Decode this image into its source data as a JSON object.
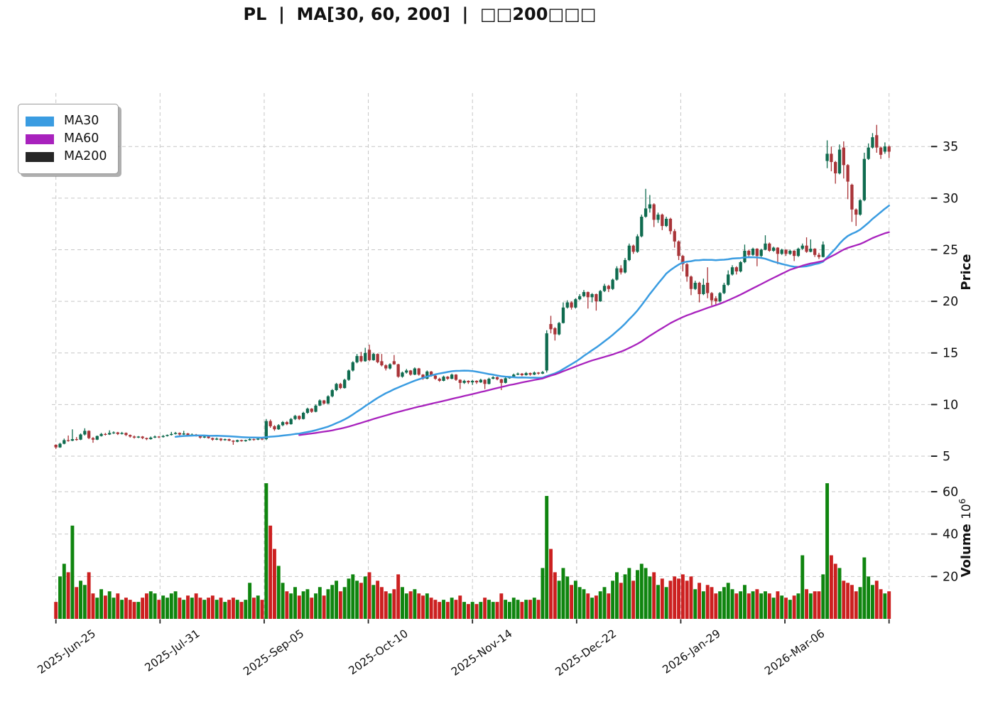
{
  "title": "PL  |  MA[30, 60, 200]  |  □□200□□□",
  "chart_data": {
    "type": "candlestick",
    "ticker": "PL",
    "panels": [
      "price",
      "volume"
    ],
    "x_axis": {
      "tick_labels": [
        "2025-Jun-25",
        "2025-Jul-31",
        "2025-Sep-05",
        "2025-Oct-10",
        "2025-Nov-14",
        "2025-Dec-22",
        "2026-Jan-29",
        "2026-Mar-06",
        ""
      ]
    },
    "price_axis": {
      "label": "Price",
      "ticks": [
        5,
        10,
        15,
        20,
        25,
        30,
        35
      ],
      "range": [
        3.8,
        40.2
      ]
    },
    "volume_axis": {
      "label": "Volume",
      "unit_base": "10",
      "unit_exp": "6",
      "ticks": [
        20,
        40,
        60
      ],
      "range": [
        0,
        70.8
      ]
    },
    "legend": {
      "items": [
        {
          "label": "MA30",
          "color": "#3a9ce1",
          "period": 30,
          "plotted": true
        },
        {
          "label": "MA60",
          "color": "#a822bd",
          "period": 60,
          "plotted": true
        },
        {
          "label": "MA200",
          "color": "#262626",
          "period": 200,
          "plotted": false
        }
      ]
    },
    "colors": {
      "up": "#0f6b4f",
      "down": "#a93438",
      "volume_up": "#0f850f",
      "volume_down": "#cc2020",
      "grid": "#c6c6c6",
      "axis_text": "#111111",
      "tick_mark": "#222222"
    },
    "ohlcv_columns": [
      "open",
      "high",
      "low",
      "close",
      "volume_millions"
    ],
    "ohlcv": [
      [
        6.1,
        6.15,
        5.7,
        5.85,
        8
      ],
      [
        5.85,
        6.3,
        5.8,
        6.2,
        20
      ],
      [
        6.2,
        6.7,
        6.15,
        6.55,
        26
      ],
      [
        6.55,
        7.0,
        6.4,
        6.5,
        22
      ],
      [
        6.5,
        7.6,
        6.45,
        6.65,
        44
      ],
      [
        6.65,
        6.85,
        6.5,
        6.6,
        15
      ],
      [
        6.6,
        7.2,
        6.55,
        7.1,
        18
      ],
      [
        7.1,
        7.7,
        7.0,
        7.45,
        16
      ],
      [
        7.45,
        7.5,
        6.65,
        6.75,
        22
      ],
      [
        6.75,
        6.85,
        6.3,
        6.6,
        12
      ],
      [
        6.6,
        7.0,
        6.55,
        6.95,
        10
      ],
      [
        6.95,
        7.25,
        6.9,
        7.15,
        14
      ],
      [
        7.15,
        7.25,
        7.0,
        7.1,
        11
      ],
      [
        7.1,
        7.5,
        7.05,
        7.25,
        13
      ],
      [
        7.25,
        7.4,
        7.15,
        7.3,
        10
      ],
      [
        7.3,
        7.35,
        7.05,
        7.15,
        12
      ],
      [
        7.15,
        7.35,
        7.1,
        7.25,
        9
      ],
      [
        7.25,
        7.3,
        6.95,
        7.05,
        10
      ],
      [
        7.05,
        7.1,
        6.8,
        6.9,
        9
      ],
      [
        6.9,
        7.0,
        6.7,
        6.8,
        8
      ],
      [
        6.8,
        6.95,
        6.75,
        6.9,
        8
      ],
      [
        6.9,
        6.95,
        6.65,
        6.75,
        10
      ],
      [
        6.75,
        6.8,
        6.55,
        6.65,
        12
      ],
      [
        6.65,
        6.9,
        6.6,
        6.8,
        13
      ],
      [
        6.8,
        7.0,
        6.75,
        6.9,
        12
      ],
      [
        6.9,
        6.95,
        6.75,
        6.85,
        9
      ],
      [
        6.85,
        7.05,
        6.8,
        6.95,
        11
      ],
      [
        6.95,
        7.1,
        6.9,
        7.05,
        10
      ],
      [
        7.05,
        7.35,
        7.0,
        7.15,
        12
      ],
      [
        7.15,
        7.35,
        7.1,
        7.25,
        13
      ],
      [
        7.25,
        7.3,
        7.0,
        7.1,
        10
      ],
      [
        7.1,
        7.45,
        7.05,
        7.2,
        9
      ],
      [
        7.2,
        7.25,
        6.95,
        7.0,
        11
      ],
      [
        7.0,
        7.2,
        6.95,
        7.1,
        10
      ],
      [
        7.1,
        7.15,
        6.9,
        6.95,
        12
      ],
      [
        6.95,
        7.0,
        6.7,
        6.8,
        10
      ],
      [
        6.8,
        6.95,
        6.75,
        6.9,
        9
      ],
      [
        6.9,
        6.95,
        6.7,
        6.75,
        10
      ],
      [
        6.75,
        6.8,
        6.5,
        6.6,
        11
      ],
      [
        6.6,
        6.8,
        6.55,
        6.7,
        9
      ],
      [
        6.7,
        6.75,
        6.45,
        6.55,
        10
      ],
      [
        6.55,
        6.7,
        6.5,
        6.65,
        8
      ],
      [
        6.65,
        6.7,
        6.45,
        6.5,
        9
      ],
      [
        6.5,
        6.55,
        6.1,
        6.4,
        10
      ],
      [
        6.4,
        6.6,
        6.35,
        6.55,
        9
      ],
      [
        6.55,
        6.6,
        6.4,
        6.45,
        8
      ],
      [
        6.45,
        6.6,
        6.4,
        6.55,
        9
      ],
      [
        6.55,
        6.75,
        6.5,
        6.65,
        17
      ],
      [
        6.65,
        6.7,
        6.5,
        6.6,
        10
      ],
      [
        6.6,
        6.75,
        6.55,
        6.7,
        11
      ],
      [
        6.7,
        6.75,
        6.55,
        6.65,
        9
      ],
      [
        6.65,
        8.6,
        6.55,
        8.4,
        64
      ],
      [
        8.4,
        8.55,
        7.75,
        7.9,
        44
      ],
      [
        7.9,
        8.0,
        7.45,
        7.6,
        33
      ],
      [
        7.6,
        8.1,
        7.55,
        8.0,
        25
      ],
      [
        8.0,
        8.4,
        7.9,
        8.3,
        17
      ],
      [
        8.3,
        8.4,
        8.0,
        8.1,
        13
      ],
      [
        8.1,
        8.7,
        8.05,
        8.6,
        12
      ],
      [
        8.6,
        9.0,
        8.5,
        8.9,
        15
      ],
      [
        8.9,
        8.95,
        8.5,
        8.6,
        11
      ],
      [
        8.6,
        9.3,
        8.55,
        9.2,
        13
      ],
      [
        9.2,
        9.7,
        9.1,
        9.6,
        14
      ],
      [
        9.6,
        9.65,
        9.2,
        9.3,
        10
      ],
      [
        9.3,
        10.0,
        9.25,
        9.9,
        12
      ],
      [
        9.9,
        10.5,
        9.85,
        10.4,
        15
      ],
      [
        10.4,
        10.45,
        10.0,
        10.1,
        11
      ],
      [
        10.1,
        10.9,
        10.05,
        10.8,
        14
      ],
      [
        10.8,
        11.5,
        10.7,
        11.4,
        16
      ],
      [
        11.4,
        12.1,
        11.3,
        12.0,
        18
      ],
      [
        12.0,
        12.1,
        11.5,
        11.6,
        13
      ],
      [
        11.6,
        12.5,
        11.55,
        12.4,
        15
      ],
      [
        12.4,
        13.4,
        12.3,
        13.3,
        19
      ],
      [
        13.3,
        14.2,
        13.2,
        14.1,
        21
      ],
      [
        14.1,
        14.9,
        14.0,
        14.7,
        18
      ],
      [
        14.7,
        15.1,
        14.1,
        14.2,
        17
      ],
      [
        14.2,
        15.5,
        14.15,
        15.0,
        20
      ],
      [
        15.3,
        15.8,
        14.2,
        14.3,
        22
      ],
      [
        14.3,
        15.0,
        14.25,
        14.9,
        16
      ],
      [
        14.9,
        14.95,
        14.0,
        14.1,
        18
      ],
      [
        14.2,
        14.9,
        13.7,
        13.8,
        15
      ],
      [
        13.8,
        13.9,
        13.3,
        13.5,
        13
      ],
      [
        13.5,
        14.0,
        13.4,
        13.9,
        12
      ],
      [
        14.2,
        14.8,
        13.85,
        13.9,
        14
      ],
      [
        13.9,
        13.95,
        12.6,
        12.7,
        21
      ],
      [
        12.7,
        13.2,
        12.6,
        13.1,
        15
      ],
      [
        13.1,
        13.45,
        13.0,
        13.3,
        12
      ],
      [
        13.3,
        13.35,
        12.8,
        12.9,
        13
      ],
      [
        12.9,
        13.6,
        12.85,
        13.5,
        14
      ],
      [
        13.5,
        13.55,
        12.8,
        12.9,
        12
      ],
      [
        12.9,
        12.95,
        12.4,
        12.5,
        11
      ],
      [
        12.5,
        13.3,
        12.45,
        13.2,
        12
      ],
      [
        13.2,
        13.25,
        12.7,
        12.8,
        10
      ],
      [
        12.8,
        12.85,
        12.4,
        12.5,
        9
      ],
      [
        12.5,
        12.6,
        12.2,
        12.3,
        8
      ],
      [
        12.3,
        12.8,
        12.25,
        12.7,
        9
      ],
      [
        12.7,
        12.75,
        12.4,
        12.5,
        8
      ],
      [
        12.5,
        13.0,
        12.45,
        12.9,
        10
      ],
      [
        12.9,
        12.95,
        12.3,
        12.4,
        9
      ],
      [
        12.4,
        12.45,
        11.5,
        12.1,
        11
      ],
      [
        12.1,
        12.4,
        12.0,
        12.3,
        8
      ],
      [
        12.3,
        12.35,
        12.0,
        12.15,
        7
      ],
      [
        12.15,
        12.4,
        11.9,
        12.3,
        8
      ],
      [
        12.3,
        12.35,
        12.0,
        12.15,
        7
      ],
      [
        12.15,
        12.5,
        12.1,
        12.4,
        8
      ],
      [
        12.4,
        12.45,
        11.5,
        12.0,
        10
      ],
      [
        12.0,
        12.6,
        11.95,
        12.5,
        9
      ],
      [
        12.5,
        12.75,
        12.45,
        12.65,
        8
      ],
      [
        12.65,
        12.7,
        12.35,
        12.45,
        8
      ],
      [
        12.45,
        12.5,
        11.4,
        12.1,
        12
      ],
      [
        12.1,
        12.65,
        12.05,
        12.55,
        9
      ],
      [
        12.55,
        12.75,
        12.5,
        12.65,
        8
      ],
      [
        12.65,
        13.0,
        12.6,
        12.9,
        10
      ],
      [
        12.9,
        13.1,
        12.85,
        13.0,
        9
      ],
      [
        13.0,
        13.05,
        12.75,
        12.85,
        8
      ],
      [
        12.85,
        13.15,
        12.8,
        13.05,
        9
      ],
      [
        13.05,
        13.1,
        12.8,
        12.9,
        9
      ],
      [
        12.9,
        13.2,
        12.85,
        13.1,
        10
      ],
      [
        13.1,
        13.15,
        12.9,
        13.0,
        9
      ],
      [
        13.0,
        13.25,
        12.95,
        13.15,
        24
      ],
      [
        13.3,
        17.2,
        13.1,
        16.9,
        58
      ],
      [
        17.8,
        18.6,
        16.9,
        17.3,
        33
      ],
      [
        17.4,
        17.5,
        16.2,
        16.8,
        22
      ],
      [
        16.8,
        18.0,
        16.7,
        17.9,
        18
      ],
      [
        17.9,
        19.9,
        17.85,
        19.4,
        24
      ],
      [
        19.4,
        20.1,
        19.3,
        19.9,
        20
      ],
      [
        19.9,
        20.0,
        19.2,
        19.4,
        16
      ],
      [
        19.4,
        20.3,
        19.3,
        20.2,
        18
      ],
      [
        20.2,
        20.7,
        20.1,
        20.5,
        15
      ],
      [
        20.5,
        21.1,
        20.4,
        20.9,
        14
      ],
      [
        20.9,
        20.95,
        19.3,
        20.4,
        12
      ],
      [
        20.4,
        20.8,
        19.9,
        20.7,
        10
      ],
      [
        20.7,
        20.75,
        19.1,
        20.0,
        11
      ],
      [
        20.0,
        21.1,
        19.95,
        21.0,
        13
      ],
      [
        21.0,
        21.7,
        20.9,
        21.5,
        15
      ],
      [
        21.5,
        21.6,
        20.9,
        21.2,
        12
      ],
      [
        21.2,
        22.2,
        21.1,
        22.1,
        18
      ],
      [
        22.1,
        23.4,
        22.0,
        23.2,
        22
      ],
      [
        23.2,
        23.5,
        22.6,
        22.8,
        17
      ],
      [
        22.8,
        24.2,
        22.7,
        24.0,
        21
      ],
      [
        24.0,
        25.6,
        23.9,
        25.4,
        24
      ],
      [
        25.4,
        25.5,
        24.6,
        24.8,
        18
      ],
      [
        24.8,
        26.5,
        24.7,
        26.3,
        23
      ],
      [
        26.3,
        28.4,
        26.2,
        28.2,
        26
      ],
      [
        28.2,
        30.9,
        28.1,
        29.0,
        24
      ],
      [
        29.0,
        30.3,
        28.6,
        29.4,
        20
      ],
      [
        29.4,
        29.5,
        27.2,
        27.9,
        22
      ],
      [
        27.9,
        28.6,
        27.6,
        28.4,
        16
      ],
      [
        28.4,
        28.5,
        26.9,
        27.3,
        19
      ],
      [
        27.3,
        28.2,
        27.2,
        28.0,
        15
      ],
      [
        28.0,
        28.1,
        26.5,
        26.8,
        18
      ],
      [
        26.8,
        27.0,
        25.2,
        25.8,
        20
      ],
      [
        25.8,
        25.9,
        24.0,
        24.4,
        19
      ],
      [
        24.4,
        24.5,
        22.9,
        23.6,
        21
      ],
      [
        23.6,
        23.7,
        21.9,
        22.4,
        18
      ],
      [
        22.4,
        22.5,
        20.6,
        21.2,
        20
      ],
      [
        21.2,
        22.0,
        21.1,
        21.8,
        14
      ],
      [
        21.8,
        21.9,
        19.9,
        20.7,
        17
      ],
      [
        20.7,
        22.2,
        20.6,
        21.6,
        13
      ],
      [
        21.8,
        23.3,
        20.3,
        20.8,
        16
      ],
      [
        20.8,
        20.9,
        19.6,
        20.1,
        15
      ],
      [
        20.3,
        20.5,
        19.7,
        20.0,
        12
      ],
      [
        20.0,
        20.9,
        19.9,
        20.8,
        13
      ],
      [
        20.8,
        21.8,
        20.7,
        21.6,
        15
      ],
      [
        21.6,
        23.0,
        21.5,
        22.6,
        17
      ],
      [
        22.6,
        23.5,
        22.5,
        23.3,
        14
      ],
      [
        23.3,
        23.4,
        22.6,
        22.9,
        12
      ],
      [
        22.9,
        23.9,
        22.8,
        23.8,
        13
      ],
      [
        23.8,
        25.5,
        23.7,
        24.9,
        16
      ],
      [
        24.9,
        25.0,
        24.3,
        24.5,
        12
      ],
      [
        24.5,
        25.2,
        24.4,
        25.1,
        13
      ],
      [
        25.1,
        25.15,
        23.4,
        24.4,
        14
      ],
      [
        24.4,
        25.1,
        24.3,
        25.0,
        12
      ],
      [
        25.0,
        26.4,
        24.95,
        25.6,
        13
      ],
      [
        25.6,
        25.7,
        24.8,
        24.9,
        12
      ],
      [
        24.9,
        25.3,
        24.8,
        25.2,
        10
      ],
      [
        25.2,
        25.25,
        23.6,
        24.6,
        13
      ],
      [
        24.6,
        25.1,
        24.5,
        25.0,
        11
      ],
      [
        25.0,
        25.05,
        24.4,
        24.6,
        10
      ],
      [
        24.6,
        25.0,
        24.5,
        24.9,
        9
      ],
      [
        24.9,
        24.95,
        23.9,
        24.4,
        11
      ],
      [
        24.4,
        25.2,
        24.3,
        25.1,
        12
      ],
      [
        25.1,
        25.6,
        25.0,
        25.4,
        30
      ],
      [
        25.4,
        26.2,
        24.7,
        24.8,
        14
      ],
      [
        24.8,
        26.0,
        24.75,
        25.1,
        12
      ],
      [
        25.1,
        25.15,
        24.3,
        24.5,
        13
      ],
      [
        24.5,
        24.7,
        24.1,
        24.3,
        13
      ],
      [
        24.3,
        25.8,
        24.25,
        25.5,
        21
      ],
      [
        33.6,
        35.6,
        32.9,
        34.3,
        64
      ],
      [
        34.3,
        35.0,
        32.6,
        33.5,
        30
      ],
      [
        33.5,
        33.6,
        31.4,
        32.4,
        26
      ],
      [
        32.4,
        35.2,
        32.3,
        34.7,
        24
      ],
      [
        34.9,
        35.5,
        31.9,
        33.2,
        18
      ],
      [
        33.2,
        33.3,
        29.9,
        31.6,
        17
      ],
      [
        31.3,
        31.4,
        27.7,
        28.9,
        16
      ],
      [
        28.9,
        29.0,
        27.3,
        28.4,
        13
      ],
      [
        28.4,
        29.9,
        28.3,
        29.8,
        15
      ],
      [
        29.8,
        34.4,
        29.7,
        33.8,
        29
      ],
      [
        33.8,
        35.3,
        33.7,
        34.9,
        20
      ],
      [
        34.9,
        36.3,
        34.8,
        35.9,
        16
      ],
      [
        36.1,
        37.1,
        34.4,
        34.9,
        18
      ],
      [
        34.9,
        35.0,
        33.8,
        34.2,
        14
      ],
      [
        34.5,
        35.4,
        34.3,
        35.0,
        12
      ],
      [
        35.0,
        35.1,
        33.9,
        34.5,
        13
      ]
    ]
  }
}
